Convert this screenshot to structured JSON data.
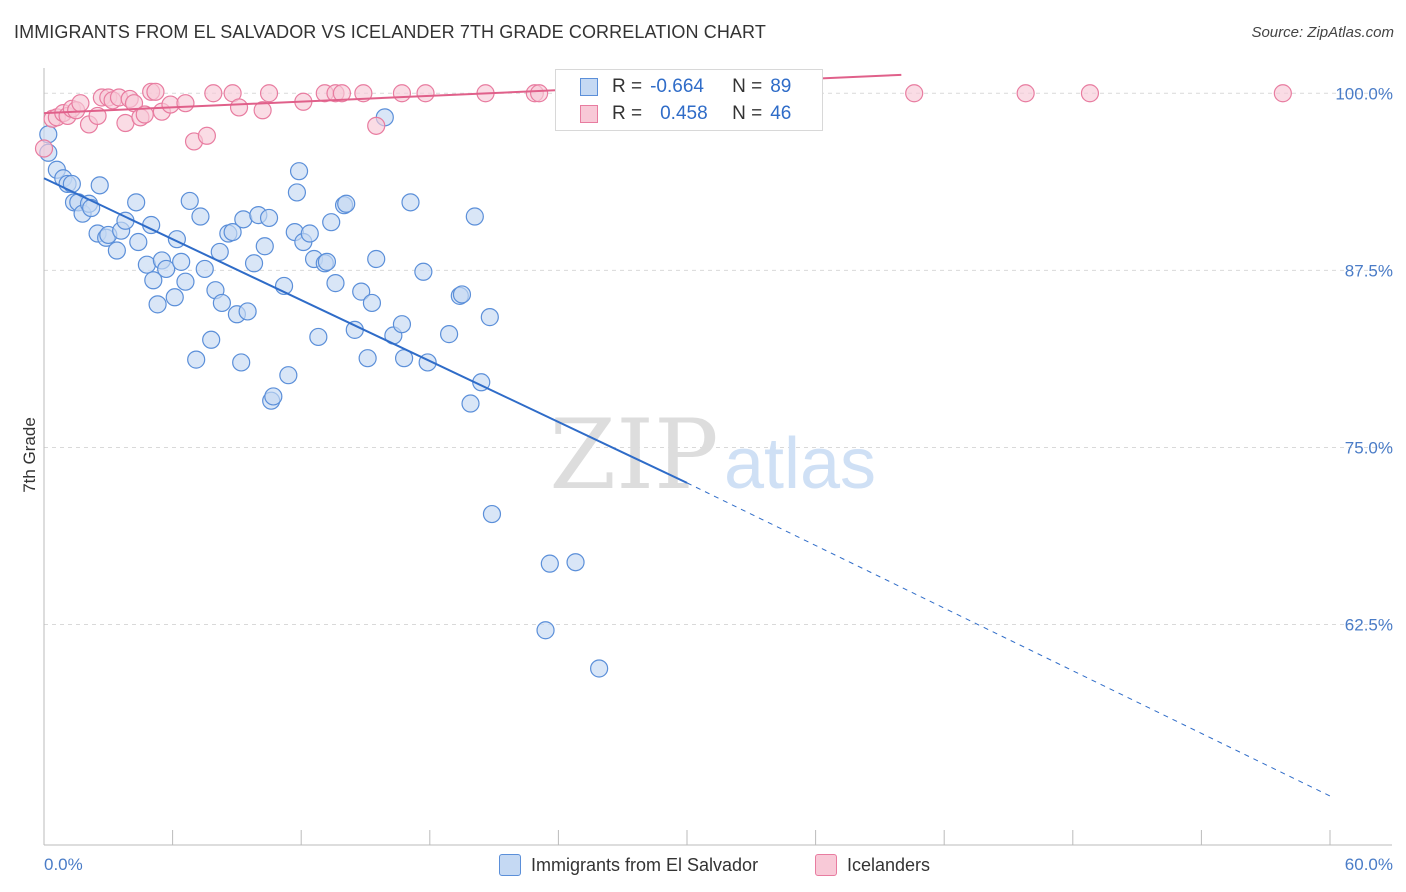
{
  "header": {
    "title": "IMMIGRANTS FROM EL SALVADOR VS ICELANDER 7TH GRADE CORRELATION CHART",
    "source": "Source: ZipAtlas.com"
  },
  "watermark": {
    "zip": "ZIP",
    "atlas": "atlas"
  },
  "legend": {
    "rows": [
      {
        "r_label": "R =",
        "r_value": "-0.664",
        "n_label": "N =",
        "n_value": "89",
        "color": "#5b8fd9",
        "fill": "#c5d9f3"
      },
      {
        "r_label": "R =",
        "r_value": "0.458",
        "n_label": "N =",
        "n_value": "46",
        "color": "#e87ca0",
        "fill": "#f8c9d7"
      }
    ]
  },
  "bottom_legend": [
    {
      "label": "Immigrants from El Salvador",
      "color": "#5b8fd9",
      "fill": "#c5d9f3"
    },
    {
      "label": "Icelanders",
      "color": "#e87ca0",
      "fill": "#f8c9d7"
    }
  ],
  "chart_data": {
    "type": "scatter",
    "title": "IMMIGRANTS FROM EL SALVADOR VS ICELANDER 7TH GRADE CORRELATION CHART",
    "xlabel": "",
    "ylabel": "7th Grade",
    "xlim": [
      0,
      60
    ],
    "ylim": [
      48,
      101.5
    ],
    "x_tick_labels": [
      "0.0%",
      "60.0%"
    ],
    "y_ticks": [
      100,
      87.5,
      75,
      62.5
    ],
    "y_tick_labels": [
      "100.0%",
      "87.5%",
      "75.0%",
      "62.5%"
    ],
    "grid": "horizontal dashed",
    "legend_position": "top-center",
    "series": [
      {
        "name": "Immigrants from El Salvador",
        "color": "#5b8fd9",
        "fill": "#c5d9f3",
        "r": -0.664,
        "n": 89,
        "trend": {
          "x1": 0,
          "y1": 94.0,
          "x2": 30,
          "y2": 72.5,
          "dashed_to_x": 60,
          "dashed_to_y": 50.4
        },
        "points": [
          [
            0.2,
            97.1
          ],
          [
            0.2,
            95.8
          ],
          [
            0.6,
            94.6
          ],
          [
            0.9,
            94.0
          ],
          [
            1.1,
            93.6
          ],
          [
            1.3,
            93.6
          ],
          [
            1.4,
            92.3
          ],
          [
            1.6,
            92.3
          ],
          [
            1.8,
            91.5
          ],
          [
            2.1,
            92.2
          ],
          [
            2.2,
            91.9
          ],
          [
            2.6,
            93.5
          ],
          [
            2.5,
            90.1
          ],
          [
            2.9,
            89.8
          ],
          [
            3.0,
            90.0
          ],
          [
            3.6,
            90.3
          ],
          [
            3.4,
            88.9
          ],
          [
            3.8,
            91.0
          ],
          [
            4.3,
            92.3
          ],
          [
            4.4,
            89.5
          ],
          [
            5.0,
            90.7
          ],
          [
            4.8,
            87.9
          ],
          [
            5.1,
            86.8
          ],
          [
            5.5,
            88.2
          ],
          [
            5.3,
            85.1
          ],
          [
            5.7,
            87.6
          ],
          [
            6.2,
            89.7
          ],
          [
            6.1,
            85.6
          ],
          [
            6.4,
            88.1
          ],
          [
            6.6,
            86.7
          ],
          [
            6.8,
            92.4
          ],
          [
            7.1,
            81.2
          ],
          [
            7.3,
            91.3
          ],
          [
            7.5,
            87.6
          ],
          [
            7.8,
            82.6
          ],
          [
            8.0,
            86.1
          ],
          [
            8.2,
            88.8
          ],
          [
            8.3,
            85.2
          ],
          [
            8.6,
            90.1
          ],
          [
            8.8,
            90.2
          ],
          [
            9.0,
            84.4
          ],
          [
            9.2,
            81.0
          ],
          [
            9.3,
            91.1
          ],
          [
            9.5,
            84.6
          ],
          [
            9.8,
            88.0
          ],
          [
            10.0,
            91.4
          ],
          [
            10.3,
            89.2
          ],
          [
            10.5,
            91.2
          ],
          [
            10.6,
            78.3
          ],
          [
            10.7,
            78.6
          ],
          [
            11.2,
            86.4
          ],
          [
            11.4,
            80.1
          ],
          [
            11.7,
            90.2
          ],
          [
            11.8,
            93.0
          ],
          [
            11.9,
            94.5
          ],
          [
            12.1,
            89.5
          ],
          [
            12.4,
            90.1
          ],
          [
            12.6,
            88.3
          ],
          [
            12.8,
            82.8
          ],
          [
            13.1,
            88.0
          ],
          [
            13.2,
            88.1
          ],
          [
            13.4,
            90.9
          ],
          [
            13.6,
            86.6
          ],
          [
            14.0,
            92.1
          ],
          [
            14.1,
            92.2
          ],
          [
            14.5,
            83.3
          ],
          [
            14.8,
            86.0
          ],
          [
            15.1,
            81.3
          ],
          [
            15.3,
            85.2
          ],
          [
            15.5,
            88.3
          ],
          [
            15.9,
            98.3
          ],
          [
            16.3,
            82.9
          ],
          [
            16.7,
            83.7
          ],
          [
            16.8,
            81.3
          ],
          [
            17.1,
            92.3
          ],
          [
            17.7,
            87.4
          ],
          [
            17.9,
            81.0
          ],
          [
            18.9,
            83.0
          ],
          [
            19.4,
            85.7
          ],
          [
            19.5,
            85.8
          ],
          [
            19.9,
            78.1
          ],
          [
            20.1,
            91.3
          ],
          [
            20.4,
            79.6
          ],
          [
            20.8,
            84.2
          ],
          [
            20.9,
            70.3
          ],
          [
            23.6,
            66.8
          ],
          [
            23.4,
            62.1
          ],
          [
            24.8,
            66.9
          ],
          [
            25.9,
            59.4
          ]
        ]
      },
      {
        "name": "Icelanders",
        "color": "#e87ca0",
        "fill": "#f8c9d7",
        "r": 0.458,
        "n": 46,
        "trend": {
          "x1": 0,
          "y1": 98.6,
          "x2": 40,
          "y2": 101.3
        },
        "points": [
          [
            0.0,
            96.1
          ],
          [
            0.4,
            98.2
          ],
          [
            0.6,
            98.3
          ],
          [
            0.9,
            98.6
          ],
          [
            1.1,
            98.4
          ],
          [
            1.3,
            98.9
          ],
          [
            1.5,
            98.8
          ],
          [
            1.7,
            99.3
          ],
          [
            2.1,
            97.8
          ],
          [
            2.5,
            98.4
          ],
          [
            2.7,
            99.7
          ],
          [
            3.0,
            99.7
          ],
          [
            3.2,
            99.5
          ],
          [
            3.5,
            99.7
          ],
          [
            3.8,
            97.9
          ],
          [
            4.0,
            99.6
          ],
          [
            4.2,
            99.3
          ],
          [
            4.5,
            98.3
          ],
          [
            4.7,
            98.5
          ],
          [
            5.0,
            100.1
          ],
          [
            5.2,
            100.1
          ],
          [
            5.5,
            98.7
          ],
          [
            5.9,
            99.2
          ],
          [
            6.6,
            99.3
          ],
          [
            7.0,
            96.6
          ],
          [
            7.6,
            97.0
          ],
          [
            7.9,
            100.0
          ],
          [
            8.8,
            100.0
          ],
          [
            9.1,
            99.0
          ],
          [
            10.2,
            98.8
          ],
          [
            10.5,
            100.0
          ],
          [
            12.1,
            99.4
          ],
          [
            13.1,
            100.0
          ],
          [
            13.6,
            100.0
          ],
          [
            13.9,
            100.0
          ],
          [
            14.9,
            100.0
          ],
          [
            15.5,
            97.7
          ],
          [
            16.7,
            100.0
          ],
          [
            17.8,
            100.0
          ],
          [
            20.6,
            100.0
          ],
          [
            22.9,
            100.0
          ],
          [
            23.1,
            100.0
          ],
          [
            40.6,
            100.0
          ],
          [
            45.8,
            100.0
          ],
          [
            48.8,
            100.0
          ],
          [
            57.8,
            100.0
          ]
        ]
      }
    ]
  }
}
